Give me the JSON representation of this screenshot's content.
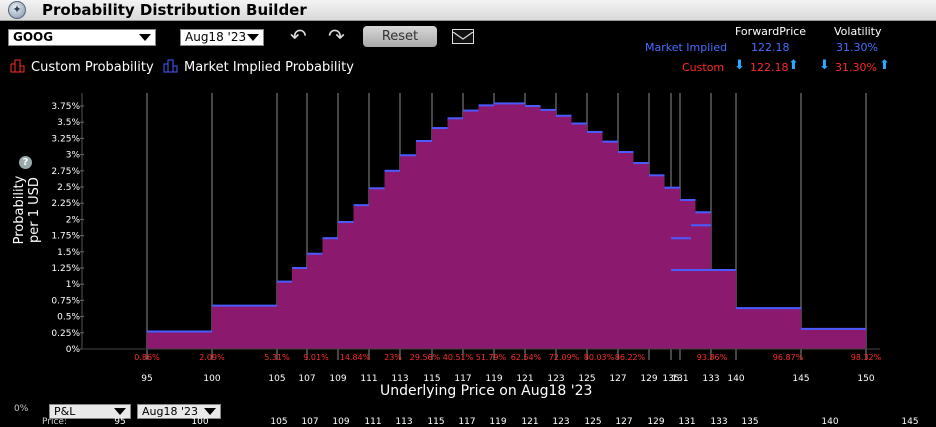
{
  "app": {
    "title": "Probability Distribution Builder"
  },
  "toolbar": {
    "symbol": "GOOG",
    "expiry": "Aug18 '23",
    "reset_label": "Reset"
  },
  "summary": {
    "forward_header": "ForwardPrice",
    "vol_header": "Volatility",
    "market_label": "Market Implied",
    "market_forward": "122.18",
    "market_vol": "31.30%",
    "custom_label": "Custom",
    "custom_forward": "122.18",
    "custom_vol": "31.30%"
  },
  "legend": {
    "custom": "Custom Probability",
    "market": "Market Implied Probability"
  },
  "axis": {
    "ylabel_line1": "Probability",
    "ylabel_line2": "per 1 USD",
    "xlabel": "Underlying Price on Aug18 '23"
  },
  "colors": {
    "fill": "#8b1a6e",
    "edge": "#4a5cff",
    "grid": "#8c8c8c",
    "cum_label": "#ff2a2a"
  },
  "bottom": {
    "dd1": "P&L",
    "dd2": "Aug18 '23",
    "left_text": "0%",
    "price_text": "Price:",
    "ticks": [
      "95",
      "100",
      "105",
      "107",
      "109",
      "111",
      "113",
      "115",
      "117",
      "119",
      "121",
      "123",
      "125",
      "127",
      "129",
      "131",
      "133",
      "135",
      "140",
      "145"
    ]
  },
  "chart_data": {
    "type": "bar",
    "title": "",
    "xlabel": "Underlying Price on Aug18 '23",
    "ylabel": "Probability per 1 USD",
    "ylim": [
      0,
      3.75
    ],
    "yticks": [
      "0%",
      "0.25%",
      "0.5%",
      "0.75%",
      "1%",
      "1.25%",
      "1.5%",
      "1.75%",
      "2%",
      "2.25%",
      "2.5%",
      "2.75%",
      "3%",
      "3.25%",
      "3.5%",
      "3.75%"
    ],
    "xticks": [
      95,
      100,
      105,
      107,
      109,
      111,
      113,
      115,
      117,
      119,
      121,
      123,
      125,
      127,
      129,
      131,
      133,
      135,
      140,
      145,
      150
    ],
    "bins": [
      {
        "from": 95,
        "to": 100,
        "value": 0.27
      },
      {
        "from": 100,
        "to": 105,
        "value": 0.67
      },
      {
        "from": 105,
        "to": 106,
        "value": 1.04
      },
      {
        "from": 106,
        "to": 107,
        "value": 1.25
      },
      {
        "from": 107,
        "to": 108,
        "value": 1.47
      },
      {
        "from": 108,
        "to": 109,
        "value": 1.71
      },
      {
        "from": 109,
        "to": 110,
        "value": 1.96
      },
      {
        "from": 110,
        "to": 111,
        "value": 2.22
      },
      {
        "from": 111,
        "to": 112,
        "value": 2.48
      },
      {
        "from": 112,
        "to": 113,
        "value": 2.75
      },
      {
        "from": 113,
        "to": 114,
        "value": 2.99
      },
      {
        "from": 114,
        "to": 115,
        "value": 3.21
      },
      {
        "from": 115,
        "to": 116,
        "value": 3.41
      },
      {
        "from": 116,
        "to": 117,
        "value": 3.56
      },
      {
        "from": 117,
        "to": 118,
        "value": 3.68
      },
      {
        "from": 118,
        "to": 119,
        "value": 3.76
      },
      {
        "from": 119,
        "to": 120,
        "value": 3.79
      },
      {
        "from": 120,
        "to": 121,
        "value": 3.79
      },
      {
        "from": 121,
        "to": 122,
        "value": 3.75
      },
      {
        "from": 122,
        "to": 123,
        "value": 3.69
      },
      {
        "from": 123,
        "to": 124,
        "value": 3.6
      },
      {
        "from": 124,
        "to": 125,
        "value": 3.48
      },
      {
        "from": 125,
        "to": 126,
        "value": 3.35
      },
      {
        "from": 126,
        "to": 127,
        "value": 3.2
      },
      {
        "from": 127,
        "to": 128,
        "value": 3.04
      },
      {
        "from": 128,
        "to": 129,
        "value": 2.87
      },
      {
        "from": 129,
        "to": 130,
        "value": 2.68
      },
      {
        "from": 130,
        "to": 131,
        "value": 2.49
      },
      {
        "from": 131,
        "to": 132,
        "value": 2.3
      },
      {
        "from": 132,
        "to": 133,
        "value": 2.11
      },
      {
        "from": 133,
        "to": 134,
        "value": 1.91
      },
      {
        "from": 134,
        "to": 135,
        "value": 1.71
      },
      {
        "from": 135,
        "to": 140,
        "value": 1.22
      },
      {
        "from": 140,
        "to": 145,
        "value": 0.63
      },
      {
        "from": 145,
        "to": 150,
        "value": 0.31
      }
    ],
    "cum_labels": [
      {
        "x": 95,
        "text": "0.86%"
      },
      {
        "x": 100,
        "text": "2.09%"
      },
      {
        "x": 105,
        "text": "5.31%"
      },
      {
        "x": 107,
        "text": "9.01%"
      },
      {
        "x": 109,
        "text": "14.84%"
      },
      {
        "x": 111,
        "text": "23%"
      },
      {
        "x": 113,
        "text": "29.56%"
      },
      {
        "x": 115,
        "text": "40.51%"
      },
      {
        "x": 117,
        "text": "51.79%"
      },
      {
        "x": 119,
        "text": "62.54%"
      },
      {
        "x": 121,
        "text": "72.09%"
      },
      {
        "x": 123,
        "text": "80.03%"
      },
      {
        "x": 125,
        "text": "86.22%"
      },
      {
        "x": 135,
        "text": "93.86%"
      },
      {
        "x": 140,
        "text": "96.87%"
      },
      {
        "x": 145,
        "text": "98.32%"
      }
    ]
  }
}
